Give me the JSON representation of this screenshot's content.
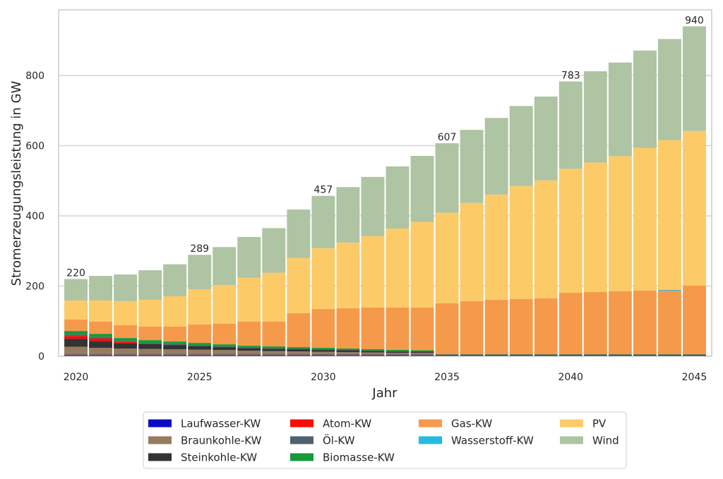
{
  "chart_data": {
    "type": "bar",
    "stacked": true,
    "xlabel": "Jahr",
    "ylabel": "Stromerzeugungsleistung in GW",
    "x": [
      2020,
      2021,
      2022,
      2023,
      2024,
      2025,
      2026,
      2027,
      2028,
      2029,
      2030,
      2031,
      2032,
      2033,
      2034,
      2035,
      2036,
      2037,
      2038,
      2039,
      2040,
      2041,
      2042,
      2043,
      2044,
      2045
    ],
    "xlim": [
      2019.3,
      2045.7
    ],
    "ylim": [
      0,
      987
    ],
    "x_ticks": [
      2020,
      2025,
      2030,
      2035,
      2040,
      2045
    ],
    "y_ticks": [
      0,
      200,
      400,
      600,
      800
    ],
    "grid": {
      "y": true,
      "x": false
    },
    "legend": "bottom",
    "series": [
      {
        "name": "Laufwasser-KW",
        "color": "#0c0cc6",
        "values": [
          4,
          4,
          4,
          4,
          4,
          4,
          4,
          4,
          4,
          4,
          4,
          4,
          4,
          4,
          4,
          4,
          4,
          4,
          4,
          4,
          4,
          4,
          4,
          4,
          4,
          4
        ]
      },
      {
        "name": "Braunkohle-KW",
        "color": "#967b5f",
        "values": [
          23,
          20,
          18,
          17,
          16,
          15,
          14,
          12,
          11,
          10,
          9,
          8,
          7,
          6,
          6,
          0,
          0,
          0,
          0,
          0,
          0,
          0,
          0,
          0,
          0,
          0
        ]
      },
      {
        "name": "Steinkohle-KW",
        "color": "#333333",
        "values": [
          23,
          19,
          15,
          14,
          12,
          10,
          8,
          7,
          6,
          6,
          5,
          5,
          4,
          3,
          3,
          0,
          0,
          0,
          0,
          0,
          0,
          0,
          0,
          0,
          0,
          0
        ]
      },
      {
        "name": "Atom-KW",
        "color": "#ff0a0a",
        "values": [
          8,
          8,
          4,
          0,
          0,
          0,
          0,
          0,
          0,
          0,
          0,
          0,
          0,
          0,
          0,
          0,
          0,
          0,
          0,
          0,
          0,
          0,
          0,
          0,
          0,
          0
        ]
      },
      {
        "name": "Öl-KW",
        "color": "#4e6270",
        "values": [
          4,
          4,
          3,
          3,
          3,
          2,
          2,
          2,
          2,
          2,
          2,
          1,
          1,
          1,
          1,
          0,
          0,
          0,
          0,
          0,
          0,
          0,
          0,
          0,
          0,
          0
        ]
      },
      {
        "name": "Biomasse-KW",
        "color": "#179a3a",
        "values": [
          10,
          9,
          8,
          8,
          7,
          7,
          6,
          5,
          5,
          4,
          4,
          4,
          4,
          4,
          3,
          1,
          1,
          1,
          1,
          1,
          1,
          1,
          1,
          1,
          1,
          1
        ]
      },
      {
        "name": "Gas-KW",
        "color": "#f59a4b",
        "values": [
          33,
          35,
          37,
          39,
          43,
          53,
          59,
          69,
          71,
          97,
          111,
          115,
          119,
          121,
          122,
          146,
          152,
          156,
          158,
          160,
          176,
          178,
          180,
          182,
          182,
          196
        ]
      },
      {
        "name": "Wasserstoff-KW",
        "color": "#27bbe3",
        "values": [
          0,
          0,
          0,
          0,
          0,
          0,
          0,
          0,
          0,
          0,
          0,
          0,
          0,
          0,
          0,
          0,
          0,
          0,
          0,
          0,
          0,
          0,
          0,
          0,
          2,
          0
        ]
      },
      {
        "name": "PV",
        "color": "#fdca68",
        "values": [
          54,
          60,
          68,
          76,
          86,
          100,
          110,
          125,
          139,
          157,
          173,
          187,
          203,
          225,
          244,
          258,
          280,
          300,
          322,
          336,
          353,
          369,
          385,
          407,
          427,
          441
        ]
      },
      {
        "name": "Wind",
        "color": "#aec4a2",
        "values": [
          61,
          70,
          76,
          84,
          91,
          98,
          108,
          116,
          127,
          138,
          149,
          158,
          169,
          177,
          188,
          198,
          208,
          218,
          228,
          239,
          249,
          260,
          267,
          277,
          288,
          298
        ]
      }
    ],
    "total_labels": [
      {
        "year": 2020,
        "value": 220
      },
      {
        "year": 2025,
        "value": 289
      },
      {
        "year": 2030,
        "value": 457
      },
      {
        "year": 2035,
        "value": 607
      },
      {
        "year": 2040,
        "value": 783
      },
      {
        "year": 2045,
        "value": 940
      }
    ]
  }
}
